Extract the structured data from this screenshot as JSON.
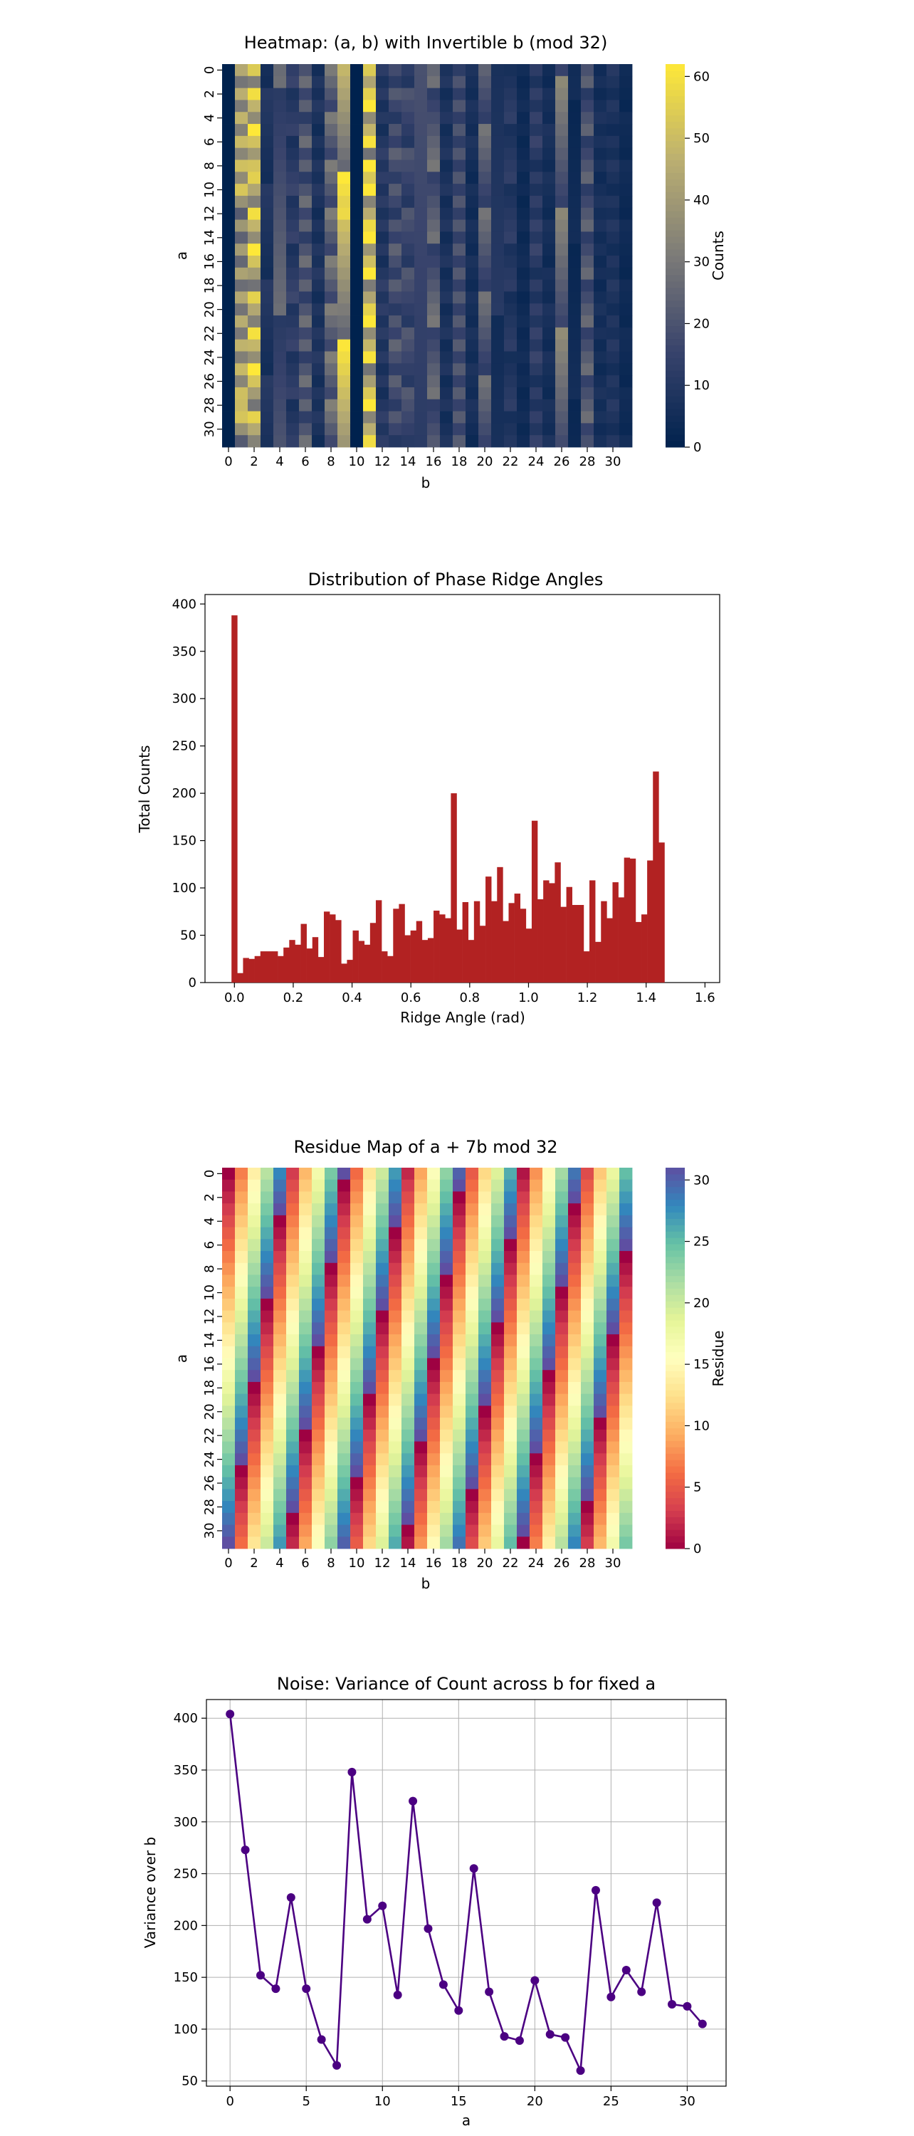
{
  "chart_data": [
    {
      "type": "heatmap",
      "title": "Heatmap: (a, b) with Invertible b (mod 32)",
      "xlabel": "b",
      "ylabel": "a",
      "colorbar_label": "Counts",
      "colormap": "cividis",
      "vmin": 0,
      "vmax": 62,
      "colorbar_ticks": [
        0,
        10,
        20,
        30,
        40,
        50,
        60
      ],
      "x_ticks": [
        0,
        2,
        4,
        6,
        8,
        10,
        12,
        14,
        16,
        18,
        20,
        22,
        24,
        26,
        28,
        30
      ],
      "y_ticks": [
        0,
        2,
        4,
        6,
        8,
        10,
        12,
        14,
        16,
        18,
        20,
        22,
        24,
        26,
        28,
        30
      ],
      "columns_b": [
        0,
        1,
        2,
        3,
        4,
        5,
        6,
        7,
        8,
        9,
        10,
        11,
        12,
        13,
        14,
        15,
        16,
        17,
        18,
        19,
        20,
        21,
        22,
        23,
        24,
        25,
        26,
        27,
        28,
        29,
        30,
        31
      ],
      "column_base_counts": [
        0,
        38,
        46,
        8,
        20,
        12,
        22,
        8,
        24,
        46,
        0,
        52,
        10,
        18,
        16,
        14,
        22,
        8,
        18,
        6,
        22,
        8,
        10,
        4,
        12,
        6,
        26,
        4,
        20,
        6,
        8,
        4
      ],
      "notable_cells": [
        {
          "a": 8,
          "b": 11,
          "count": 62
        },
        {
          "a": 0,
          "b": 2,
          "count": 54
        },
        {
          "a": 0,
          "b": 11,
          "count": 54
        },
        {
          "a": 12,
          "b": 9,
          "count": 58
        },
        {
          "a": 8,
          "b": 2,
          "count": 52
        },
        {
          "a": 28,
          "b": 1,
          "count": 50
        }
      ],
      "grid": false,
      "legend": "colorbar-right"
    },
    {
      "type": "bar",
      "title": "Distribution of Phase Ridge Angles",
      "xlabel": "Ridge Angle (rad)",
      "ylabel": "Total Counts",
      "xlim": [
        -0.1,
        1.65
      ],
      "ylim": [
        0,
        410
      ],
      "x_ticks": [
        0.0,
        0.2,
        0.4,
        0.6,
        0.8,
        1.0,
        1.2,
        1.4,
        1.6
      ],
      "x_tick_labels": [
        "0.0",
        "0.2",
        "0.4",
        "0.6",
        "0.8",
        "1.0",
        "1.2",
        "1.4",
        "1.6"
      ],
      "y_ticks": [
        0,
        50,
        100,
        150,
        200,
        250,
        300,
        350,
        400
      ],
      "bin_start": -0.00993,
      "bin_width": 0.01963,
      "values": [
        388,
        10,
        26,
        25,
        28,
        33,
        33,
        33,
        28,
        37,
        45,
        40,
        62,
        36,
        48,
        27,
        75,
        72,
        66,
        20,
        24,
        55,
        44,
        40,
        63,
        87,
        33,
        28,
        78,
        83,
        50,
        55,
        65,
        45,
        47,
        76,
        72,
        68,
        200,
        56,
        85,
        45,
        86,
        60,
        112,
        86,
        122,
        65,
        84,
        94,
        78,
        57,
        171,
        88,
        108,
        105,
        127,
        80,
        101,
        82,
        82,
        33,
        108,
        43,
        86,
        68,
        106,
        90,
        132,
        131,
        64,
        72,
        129,
        223,
        148
      ],
      "color": "#b22222",
      "grid": false
    },
    {
      "type": "heatmap",
      "title": "Residue Map of a + 7b mod 32",
      "xlabel": "b",
      "ylabel": "a",
      "colorbar_label": "Residue",
      "colormap": "Spectral",
      "formula": "(a + 7*b) mod 32",
      "vmin": 0,
      "vmax": 31,
      "colorbar_ticks": [
        0,
        5,
        10,
        15,
        20,
        25,
        30
      ],
      "x_ticks": [
        0,
        2,
        4,
        6,
        8,
        10,
        12,
        14,
        16,
        18,
        20,
        22,
        24,
        26,
        28,
        30
      ],
      "y_ticks": [
        0,
        2,
        4,
        6,
        8,
        10,
        12,
        14,
        16,
        18,
        20,
        22,
        24,
        26,
        28,
        30
      ],
      "grid": false,
      "legend": "colorbar-right"
    },
    {
      "type": "line",
      "title": "Noise: Variance of Count across b for fixed a",
      "xlabel": "a",
      "ylabel": "Variance over b",
      "x": [
        0,
        1,
        2,
        3,
        4,
        5,
        6,
        7,
        8,
        9,
        10,
        11,
        12,
        13,
        14,
        15,
        16,
        17,
        18,
        19,
        20,
        21,
        22,
        23,
        24,
        25,
        26,
        27,
        28,
        29,
        30,
        31
      ],
      "values": [
        404,
        273,
        152,
        139,
        227,
        139,
        90,
        65,
        348,
        206,
        219,
        133,
        320,
        197,
        143,
        118,
        255,
        136,
        93,
        89,
        147,
        95,
        92,
        60,
        234,
        131,
        157,
        136,
        222,
        124,
        122,
        105
      ],
      "xlim": [
        -1.55,
        32.55
      ],
      "ylim": [
        45,
        418
      ],
      "x_ticks": [
        0,
        5,
        10,
        15,
        20,
        25,
        30
      ],
      "y_ticks": [
        50,
        100,
        150,
        200,
        250,
        300,
        350,
        400
      ],
      "color": "#4b0082",
      "marker": "circle",
      "grid": true
    }
  ]
}
